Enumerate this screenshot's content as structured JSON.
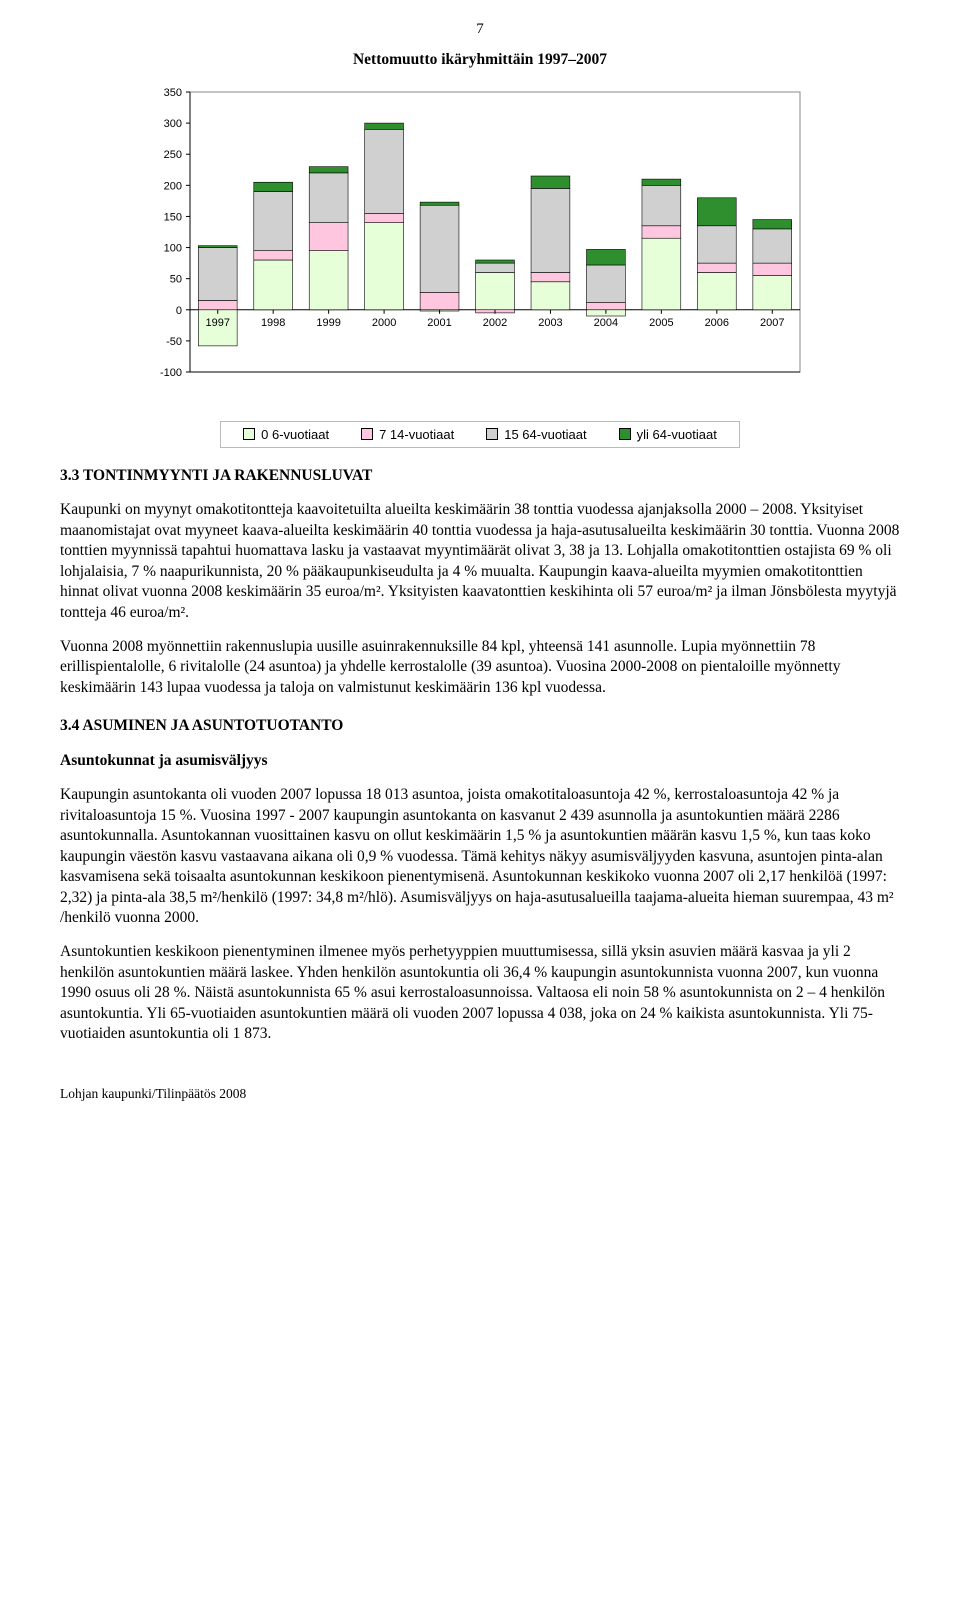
{
  "page_number": "7",
  "chart": {
    "type": "stacked-bar",
    "title": "Nettomuutto ikäryhmittäin 1997–2007",
    "categories": [
      "1997",
      "1998",
      "1999",
      "2000",
      "2001",
      "2002",
      "2003",
      "2004",
      "2005",
      "2006",
      "2007"
    ],
    "series": [
      {
        "name": "0 6-vuotiaat",
        "label": "0 6-vuotiaat",
        "color": "#e6ffd9",
        "values": [
          -58,
          80,
          95,
          140,
          -2,
          60,
          45,
          -10,
          115,
          60,
          55
        ]
      },
      {
        "name": "7 14-vuotiaat",
        "label": "7 14-vuotiaat",
        "color": "#ffc6e0",
        "values": [
          15,
          15,
          45,
          15,
          28,
          -5,
          15,
          12,
          20,
          15,
          20
        ]
      },
      {
        "name": "15 64-vuotiaat",
        "label": "15 64-vuotiaat",
        "color": "#d0d0d0",
        "values": [
          85,
          95,
          80,
          135,
          140,
          15,
          135,
          60,
          65,
          60,
          55
        ]
      },
      {
        "name": "yli 64-vuotiaat",
        "label": "yli 64-vuotiaat",
        "color": "#2f8f2f",
        "values": [
          3,
          15,
          10,
          10,
          5,
          5,
          20,
          25,
          10,
          45,
          15
        ]
      }
    ],
    "ylim": [
      -100,
      350
    ],
    "ytick_step": 50,
    "xlim": [
      0,
      11
    ],
    "background_color": "#ffffff",
    "grid_color": "#000000",
    "axis_fontsize": 11,
    "legend_border": "#bbbbbb",
    "bar_width": 0.7
  },
  "section_3_3": {
    "heading": "3.3 TONTINMYYNTI JA RAKENNUSLUVAT",
    "para1": "Kaupunki on myynyt omakotitontteja kaavoitetuilta alueilta keskimäärin 38 tonttia vuodessa ajanjaksolla 2000 – 2008. Yksityiset maanomistajat ovat myyneet kaava-alueilta keskimäärin 40 tonttia vuodessa ja haja-asutusalueilta keskimäärin 30 tonttia. Vuonna 2008 tonttien myynnissä tapahtui huomattava lasku ja vastaavat myyntimäärät olivat 3, 38 ja 13. Lohjalla omakotitonttien ostajista 69 % oli lohjalaisia, 7 % naapurikunnista, 20 % pääkaupunkiseudulta ja 4 % muualta. Kaupungin kaava-alueilta myymien omakotitonttien hinnat olivat vuonna 2008 keskimäärin 35 euroa/m². Yksityisten kaavatonttien keskihinta oli 57 euroa/m² ja ilman Jönsbölesta myytyjä tontteja 46 euroa/m².",
    "para2": "Vuonna 2008 myönnettiin rakennuslupia uusille asuinrakennuksille 84 kpl, yhteensä 141 asunnolle. Lupia myönnettiin 78 erillispientalolle, 6 rivitalolle (24 asuntoa) ja yhdelle kerrostalolle (39 asuntoa). Vuosina 2000-2008 on pientaloille myönnetty keskimäärin 143 lupaa vuodessa ja taloja on valmistunut keskimäärin 136 kpl vuodessa."
  },
  "section_3_4": {
    "heading": "3.4 ASUMINEN JA ASUNTOTUOTANTO",
    "subheading": "Asuntokunnat ja asumisväljyys",
    "para1": "Kaupungin asuntokanta oli vuoden 2007 lopussa 18 013 asuntoa, joista omakotitaloasuntoja 42 %, kerrostaloasuntoja 42 %  ja rivitaloasuntoja 15 %.  Vuosina 1997 - 2007 kaupungin asuntokanta on kasvanut       2 439 asunnolla ja asuntokuntien määrä 2286 asuntokunnalla. Asuntokannan vuosittainen kasvu on ollut keskimäärin 1,5 % ja asuntokuntien määrän kasvu 1,5 %, kun taas koko kaupungin väestön kasvu vastaavana aikana oli 0,9 % vuodessa. Tämä kehitys näkyy asumisväljyyden kasvuna, asuntojen pinta-alan kasvamisena sekä toisaalta asuntokunnan keskikoon pienentymisenä. Asuntokunnan keskikoko vuonna 2007 oli 2,17 henkilöä (1997: 2,32) ja pinta-ala 38,5 m²/henkilö (1997: 34,8 m²/hlö). Asumisväljyys on haja-asutusalueilla taajama-alueita hieman suurempaa, 43 m² /henkilö vuonna 2000.",
    "para2": "Asuntokuntien keskikoon pienentyminen ilmenee myös perhetyyppien muuttumisessa, sillä yksin asuvien määrä kasvaa ja yli 2 henkilön asuntokuntien määrä laskee. Yhden henkilön asuntokuntia oli 36,4 % kaupungin asuntokunnista vuonna 2007, kun vuonna 1990 osuus oli 28 %. Näistä asuntokunnista 65 % asui kerrostaloasunnoissa. Valtaosa eli noin 58 % asuntokunnista on 2 – 4 henkilön asuntokuntia. Yli 65-vuotiaiden asuntokuntien määrä oli vuoden 2007 lopussa 4 038, joka on 24 % kaikista asuntokunnista. Yli 75-vuotiaiden asuntokuntia oli 1 873."
  },
  "footer": "Lohjan kaupunki/Tilinpäätös 2008"
}
